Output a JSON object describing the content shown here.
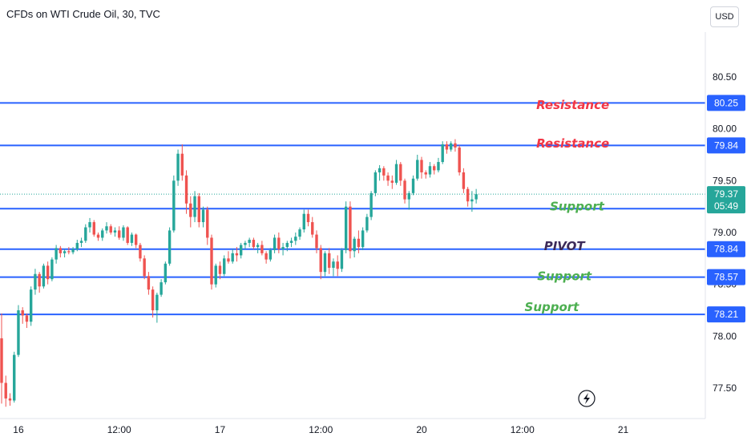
{
  "header": {
    "title": "CFDs on WTI Crude Oil, 30, TVC",
    "currency": "USD"
  },
  "colors": {
    "up": "#26a69a",
    "down": "#ef5350",
    "level_line": "#2962ff",
    "label_bg": "#2962ff",
    "resistance": "#f23645",
    "support": "#4caf50",
    "pivot": "#3d2b5a",
    "current_price": "#26a69a"
  },
  "chart_data": {
    "type": "candlestick",
    "symbol": "CFDs on WTI Crude Oil",
    "interval": "30",
    "source": "TVC",
    "currency": "USD",
    "y_range": [
      77.32,
      80.78
    ],
    "y_ticks": [
      80.5,
      80.0,
      79.5,
      79.0,
      78.5,
      78.0,
      77.5
    ],
    "y_tick_labels": [
      "80.50",
      "80.00",
      "79.50",
      "79.00",
      "78.50",
      "78.00",
      "77.50"
    ],
    "x_ticks": [
      {
        "label": "16",
        "bar": 4
      },
      {
        "label": "12:00",
        "bar": 28
      },
      {
        "label": "17",
        "bar": 52
      },
      {
        "label": "12:00",
        "bar": 76
      },
      {
        "label": "20",
        "bar": 100
      },
      {
        "label": "12:00",
        "bar": 124
      },
      {
        "label": "21",
        "bar": 148
      }
    ],
    "levels": [
      {
        "price": 80.25,
        "label": "80.25"
      },
      {
        "price": 79.84,
        "label": "79.84"
      },
      {
        "price": 79.23,
        "label": ""
      },
      {
        "price": 78.84,
        "label": "78.84"
      },
      {
        "price": 78.57,
        "label": "78.57"
      },
      {
        "price": 78.21,
        "label": "78.21"
      }
    ],
    "current_price": {
      "price": 79.37,
      "label": "79.37",
      "countdown": "05:49"
    },
    "annotations": [
      {
        "text": "Resistance",
        "price": 80.23,
        "bar": 136,
        "kind": "resistance"
      },
      {
        "text": "Resistance",
        "price": 79.86,
        "bar": 136,
        "kind": "resistance"
      },
      {
        "text": "Support",
        "price": 79.25,
        "bar": 137,
        "kind": "support"
      },
      {
        "text": "PIVOT",
        "price": 78.87,
        "bar": 134,
        "kind": "pivot"
      },
      {
        "text": "Support",
        "price": 78.58,
        "bar": 134,
        "kind": "support"
      },
      {
        "text": "Support",
        "price": 78.28,
        "bar": 131,
        "kind": "support"
      }
    ],
    "candles": [
      [
        77.98,
        78.22,
        77.35,
        77.55
      ],
      [
        77.55,
        77.62,
        77.32,
        77.4
      ],
      [
        77.4,
        77.45,
        77.33,
        77.38
      ],
      [
        77.38,
        77.85,
        77.36,
        77.82
      ],
      [
        77.82,
        78.3,
        77.8,
        78.25
      ],
      [
        78.25,
        78.28,
        78.12,
        78.2
      ],
      [
        78.2,
        78.22,
        78.08,
        78.14
      ],
      [
        78.14,
        78.48,
        78.1,
        78.45
      ],
      [
        78.45,
        78.65,
        78.4,
        78.6
      ],
      [
        78.6,
        78.62,
        78.42,
        78.48
      ],
      [
        78.48,
        78.7,
        78.46,
        78.68
      ],
      [
        78.68,
        78.72,
        78.5,
        78.55
      ],
      [
        78.55,
        78.76,
        78.53,
        78.74
      ],
      [
        78.74,
        78.88,
        78.7,
        78.85
      ],
      [
        78.85,
        78.87,
        78.76,
        78.8
      ],
      [
        78.8,
        78.84,
        78.76,
        78.82
      ],
      [
        78.82,
        78.86,
        78.79,
        78.81
      ],
      [
        78.81,
        78.86,
        78.79,
        78.84
      ],
      [
        78.84,
        78.93,
        78.82,
        78.9
      ],
      [
        78.9,
        78.95,
        78.86,
        78.92
      ],
      [
        78.92,
        79.08,
        78.9,
        79.05
      ],
      [
        79.05,
        79.14,
        79.0,
        79.1
      ],
      [
        79.1,
        79.12,
        78.96,
        78.98
      ],
      [
        78.98,
        79.0,
        78.92,
        78.95
      ],
      [
        78.95,
        79.04,
        78.92,
        79.02
      ],
      [
        79.02,
        79.1,
        78.99,
        79.06
      ],
      [
        79.06,
        79.08,
        78.98,
        79.0
      ],
      [
        79.0,
        79.05,
        78.96,
        79.02
      ],
      [
        79.02,
        79.06,
        78.93,
        78.95
      ],
      [
        78.95,
        79.07,
        78.92,
        79.05
      ],
      [
        79.05,
        79.06,
        78.88,
        78.9
      ],
      [
        78.9,
        79.0,
        78.87,
        78.98
      ],
      [
        78.98,
        78.99,
        78.85,
        78.88
      ],
      [
        78.88,
        78.9,
        78.72,
        78.75
      ],
      [
        78.75,
        78.78,
        78.55,
        78.58
      ],
      [
        78.58,
        78.62,
        78.4,
        78.45
      ],
      [
        78.45,
        78.48,
        78.18,
        78.25
      ],
      [
        78.25,
        78.42,
        78.13,
        78.4
      ],
      [
        78.4,
        78.55,
        78.38,
        78.52
      ],
      [
        78.52,
        78.72,
        78.5,
        78.7
      ],
      [
        78.7,
        79.05,
        78.68,
        79.02
      ],
      [
        79.02,
        79.55,
        79.0,
        79.5
      ],
      [
        79.5,
        79.8,
        79.45,
        79.76
      ],
      [
        79.76,
        79.85,
        79.5,
        79.55
      ],
      [
        79.55,
        79.6,
        79.18,
        79.28
      ],
      [
        79.28,
        79.35,
        79.05,
        79.15
      ],
      [
        79.15,
        79.4,
        79.1,
        79.35
      ],
      [
        79.35,
        79.38,
        79.05,
        79.1
      ],
      [
        79.1,
        79.25,
        79.05,
        79.22
      ],
      [
        79.22,
        79.25,
        78.88,
        78.95
      ],
      [
        78.95,
        78.98,
        78.45,
        78.5
      ],
      [
        78.5,
        78.7,
        78.47,
        78.68
      ],
      [
        78.68,
        78.72,
        78.55,
        78.6
      ],
      [
        78.6,
        78.78,
        78.58,
        78.75
      ],
      [
        78.75,
        78.82,
        78.7,
        78.72
      ],
      [
        78.72,
        78.84,
        78.7,
        78.8
      ],
      [
        78.8,
        78.86,
        78.72,
        78.78
      ],
      [
        78.78,
        78.9,
        78.75,
        78.88
      ],
      [
        78.88,
        78.92,
        78.84,
        78.9
      ],
      [
        78.9,
        78.95,
        78.86,
        78.93
      ],
      [
        78.93,
        78.95,
        78.84,
        78.86
      ],
      [
        78.86,
        78.9,
        78.8,
        78.88
      ],
      [
        78.88,
        78.92,
        78.78,
        78.8
      ],
      [
        78.8,
        78.82,
        78.7,
        78.74
      ],
      [
        78.74,
        78.85,
        78.72,
        78.83
      ],
      [
        78.83,
        78.98,
        78.8,
        78.95
      ],
      [
        78.95,
        79.0,
        78.8,
        78.84
      ],
      [
        78.84,
        78.9,
        78.78,
        78.86
      ],
      [
        78.86,
        78.92,
        78.82,
        78.9
      ],
      [
        78.9,
        78.95,
        78.86,
        78.92
      ],
      [
        78.92,
        79.0,
        78.88,
        78.96
      ],
      [
        78.96,
        79.05,
        78.93,
        79.03
      ],
      [
        79.03,
        79.22,
        79.0,
        79.18
      ],
      [
        79.18,
        79.22,
        79.06,
        79.1
      ],
      [
        79.1,
        79.15,
        78.95,
        78.98
      ],
      [
        78.98,
        79.02,
        78.8,
        78.85
      ],
      [
        78.85,
        78.88,
        78.55,
        78.62
      ],
      [
        78.62,
        78.82,
        78.58,
        78.8
      ],
      [
        78.8,
        78.85,
        78.6,
        78.66
      ],
      [
        78.66,
        78.75,
        78.58,
        78.72
      ],
      [
        78.72,
        78.78,
        78.58,
        78.65
      ],
      [
        78.65,
        78.85,
        78.62,
        78.83
      ],
      [
        78.83,
        79.3,
        78.8,
        79.25
      ],
      [
        79.25,
        79.3,
        78.75,
        78.82
      ],
      [
        78.82,
        78.96,
        78.76,
        78.94
      ],
      [
        78.94,
        79.02,
        78.8,
        78.86
      ],
      [
        78.86,
        79.05,
        78.83,
        79.02
      ],
      [
        79.02,
        79.18,
        79.0,
        79.15
      ],
      [
        79.15,
        79.4,
        79.12,
        79.38
      ],
      [
        79.38,
        79.6,
        79.35,
        79.58
      ],
      [
        79.58,
        79.65,
        79.5,
        79.62
      ],
      [
        79.62,
        79.64,
        79.5,
        79.55
      ],
      [
        79.55,
        79.58,
        79.45,
        79.5
      ],
      [
        79.5,
        79.55,
        79.42,
        79.48
      ],
      [
        79.48,
        79.7,
        79.46,
        79.66
      ],
      [
        79.66,
        79.68,
        79.45,
        79.5
      ],
      [
        79.5,
        79.52,
        79.28,
        79.32
      ],
      [
        79.32,
        79.4,
        79.22,
        79.38
      ],
      [
        79.38,
        79.55,
        79.36,
        79.52
      ],
      [
        79.52,
        79.75,
        79.5,
        79.7
      ],
      [
        79.7,
        79.73,
        79.52,
        79.58
      ],
      [
        79.58,
        79.6,
        79.52,
        79.56
      ],
      [
        79.56,
        79.68,
        79.53,
        79.64
      ],
      [
        79.64,
        79.66,
        79.56,
        79.6
      ],
      [
        79.6,
        79.72,
        79.58,
        79.68
      ],
      [
        79.68,
        79.88,
        79.66,
        79.85
      ],
      [
        79.85,
        79.88,
        79.76,
        79.8
      ],
      [
        79.8,
        79.88,
        79.78,
        79.86
      ],
      [
        79.86,
        79.9,
        79.78,
        79.82
      ],
      [
        79.82,
        79.84,
        79.55,
        79.58
      ],
      [
        79.58,
        79.62,
        79.38,
        79.42
      ],
      [
        79.42,
        79.44,
        79.25,
        79.3
      ],
      [
        79.3,
        79.4,
        79.2,
        79.32
      ],
      [
        79.32,
        79.42,
        79.28,
        79.37
      ]
    ]
  }
}
